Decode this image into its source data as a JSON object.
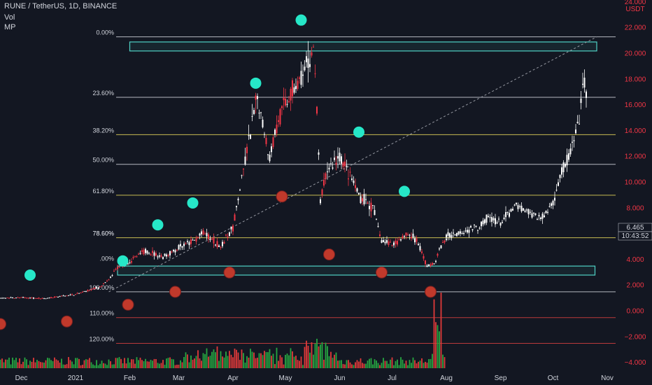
{
  "header": {
    "symbol": "RUNE / TetherUS, 1D, BINANCE",
    "indicator_vol": "Vol",
    "indicator_mp": "MP"
  },
  "price_axis": {
    "currency": "USDT",
    "top_label": "24.000",
    "last_price": "6.465",
    "countdown": "10:43:52"
  },
  "colors": {
    "background": "#131722",
    "up": "#ffffff",
    "down": "#f23645",
    "vol_up": "#26a641",
    "vol_down": "#e03a3a",
    "teal": "#26e7c8",
    "red_dot": "#c0392b",
    "fib_white": "#d1d4dc",
    "fib_yellow": "#e6d85a",
    "fib_red": "#d94040",
    "box": "#4fd1c5"
  },
  "chart_data": {
    "type": "candlestick",
    "title": "RUNE / TetherUS, 1D, BINANCE",
    "y_axis": {
      "ylim": [
        -4.5,
        24.0
      ],
      "ticks": [
        24.0,
        22.0,
        20.0,
        18.0,
        16.0,
        14.0,
        12.0,
        10.0,
        8.0,
        6.0,
        4.0,
        2.0,
        0.0,
        -2.0,
        -4.0
      ],
      "tick_labels": [
        "24.000",
        "22.000",
        "20.000",
        "18.000",
        "16.000",
        "14.000",
        "12.000",
        "10.000",
        "8.000",
        "6.000",
        "4.000",
        "2.000",
        "0.000",
        "−2.000",
        "−4.000"
      ],
      "negative_labels_red": true
    },
    "x_axis": {
      "range": [
        "2020-11-14",
        "2021-11-04"
      ],
      "ticks": [
        {
          "date": "2020-12-01",
          "label": "Dec"
        },
        {
          "date": "2021-01-01",
          "label": "2021"
        },
        {
          "date": "2021-02-01",
          "label": "Feb"
        },
        {
          "date": "2021-03-01",
          "label": "Mar"
        },
        {
          "date": "2021-04-01",
          "label": "Apr"
        },
        {
          "date": "2021-05-01",
          "label": "May"
        },
        {
          "date": "2021-06-01",
          "label": "Jun"
        },
        {
          "date": "2021-07-01",
          "label": "Jul"
        },
        {
          "date": "2021-08-01",
          "label": "Aug"
        },
        {
          "date": "2021-09-01",
          "label": "Sep"
        },
        {
          "date": "2021-10-01",
          "label": "Oct"
        },
        {
          "date": "2021-11-01",
          "label": "Nov"
        }
      ]
    },
    "price_series": [
      {
        "date": "2020-11-14",
        "close": 1.0
      },
      {
        "date": "2020-12-01",
        "close": 1.05
      },
      {
        "date": "2020-12-15",
        "close": 1.0
      },
      {
        "date": "2021-01-01",
        "close": 1.3
      },
      {
        "date": "2021-01-15",
        "close": 1.9
      },
      {
        "date": "2021-01-20",
        "close": 2.4
      },
      {
        "date": "2021-01-25",
        "close": 3.4
      },
      {
        "date": "2021-02-01",
        "close": 3.9
      },
      {
        "date": "2021-02-10",
        "close": 4.7
      },
      {
        "date": "2021-02-20",
        "close": 4.2
      },
      {
        "date": "2021-03-01",
        "close": 4.9
      },
      {
        "date": "2021-03-10",
        "close": 5.5
      },
      {
        "date": "2021-03-15",
        "close": 6.1
      },
      {
        "date": "2021-03-25",
        "close": 5.0
      },
      {
        "date": "2021-04-01",
        "close": 6.5
      },
      {
        "date": "2021-04-05",
        "close": 9.5
      },
      {
        "date": "2021-04-12",
        "close": 14.5
      },
      {
        "date": "2021-04-15",
        "close": 16.5
      },
      {
        "date": "2021-04-22",
        "close": 12.0
      },
      {
        "date": "2021-04-27",
        "close": 15.0
      },
      {
        "date": "2021-05-05",
        "close": 17.0
      },
      {
        "date": "2021-05-12",
        "close": 18.5
      },
      {
        "date": "2021-05-17",
        "close": 20.5
      },
      {
        "date": "2021-05-19",
        "close": 15.5
      },
      {
        "date": "2021-05-21",
        "close": 8.5
      },
      {
        "date": "2021-05-25",
        "close": 11.0
      },
      {
        "date": "2021-06-01",
        "close": 12.0
      },
      {
        "date": "2021-06-07",
        "close": 10.5
      },
      {
        "date": "2021-06-12",
        "close": 9.0
      },
      {
        "date": "2021-06-20",
        "close": 8.0
      },
      {
        "date": "2021-06-25",
        "close": 5.5
      },
      {
        "date": "2021-07-01",
        "close": 5.2
      },
      {
        "date": "2021-07-10",
        "close": 6.0
      },
      {
        "date": "2021-07-15",
        "close": 5.5
      },
      {
        "date": "2021-07-21",
        "close": 3.5
      },
      {
        "date": "2021-07-25",
        "close": 3.7
      },
      {
        "date": "2021-07-29",
        "close": 5.0
      },
      {
        "date": "2021-08-01",
        "close": 5.6
      }
    ],
    "projection_series": [
      {
        "date": "2021-08-01",
        "close": 5.8
      },
      {
        "date": "2021-08-10",
        "close": 6.2
      },
      {
        "date": "2021-08-20",
        "close": 6.6
      },
      {
        "date": "2021-08-25",
        "close": 7.3
      },
      {
        "date": "2021-09-01",
        "close": 6.8
      },
      {
        "date": "2021-09-05",
        "close": 7.5
      },
      {
        "date": "2021-09-10",
        "close": 8.2
      },
      {
        "date": "2021-09-15",
        "close": 7.8
      },
      {
        "date": "2021-09-25",
        "close": 7.2
      },
      {
        "date": "2021-10-01",
        "close": 8.5
      },
      {
        "date": "2021-10-05",
        "close": 10.5
      },
      {
        "date": "2021-10-10",
        "close": 12.0
      },
      {
        "date": "2021-10-15",
        "close": 14.0
      },
      {
        "date": "2021-10-19",
        "close": 18.0
      },
      {
        "date": "2021-10-20",
        "close": 17.0
      }
    ],
    "volume_series": [],
    "fib_levels": [
      {
        "label": "0.00%",
        "price": 21.3,
        "color": "white"
      },
      {
        "label": "23.60%",
        "price": 16.6,
        "color": "white"
      },
      {
        "label": "38.20%",
        "price": 13.7,
        "color": "yellow"
      },
      {
        "label": "50.00%",
        "price": 11.4,
        "color": "white"
      },
      {
        "label": "61.80%",
        "price": 9.0,
        "color": "yellow"
      },
      {
        "label": "78.60%",
        "price": 5.7,
        "color": "yellow"
      },
      {
        "label": "100.00%",
        "price": 1.5,
        "color": "white"
      },
      {
        "label": "110.00%",
        "price": -0.5,
        "color": "red"
      },
      {
        "label": "120.00%",
        "price": -2.5,
        "color": "red"
      }
    ],
    "fib_partial_labels": [
      {
        "label": "78.60%",
        "price": 5.7
      },
      {
        "label": ".00%",
        "price": 3.75
      }
    ],
    "zones": [
      {
        "name": "top-zone",
        "start": "2021-02-01",
        "end": "2021-10-26",
        "low": 20.2,
        "high": 20.9
      },
      {
        "name": "bottom-zone",
        "start": "2021-01-25",
        "end": "2021-10-25",
        "low": 2.8,
        "high": 3.5
      }
    ],
    "trend_line": {
      "start": {
        "date": "2021-01-20",
        "price": 1.5
      },
      "end": {
        "date": "2021-10-26",
        "price": 21.3
      }
    },
    "markers": {
      "teal": [
        {
          "date": "2020-12-06",
          "price": 2.8
        },
        {
          "date": "2021-01-28",
          "price": 3.9
        },
        {
          "date": "2021-02-17",
          "price": 6.7
        },
        {
          "date": "2021-03-09",
          "price": 8.4
        },
        {
          "date": "2021-04-14",
          "price": 17.7
        },
        {
          "date": "2021-05-10",
          "price": 22.6
        },
        {
          "date": "2021-06-12",
          "price": 13.9
        },
        {
          "date": "2021-07-08",
          "price": 9.3
        }
      ],
      "red": [
        {
          "date": "2020-11-19",
          "price": -1.0
        },
        {
          "date": "2020-12-27",
          "price": -0.8
        },
        {
          "date": "2021-01-31",
          "price": 0.5
        },
        {
          "date": "2021-02-27",
          "price": 1.5
        },
        {
          "date": "2021-03-30",
          "price": 3.0
        },
        {
          "date": "2021-04-29",
          "price": 8.9
        },
        {
          "date": "2021-05-26",
          "price": 4.4
        },
        {
          "date": "2021-06-25",
          "price": 3.0
        },
        {
          "date": "2021-07-23",
          "price": 1.5
        }
      ]
    }
  }
}
